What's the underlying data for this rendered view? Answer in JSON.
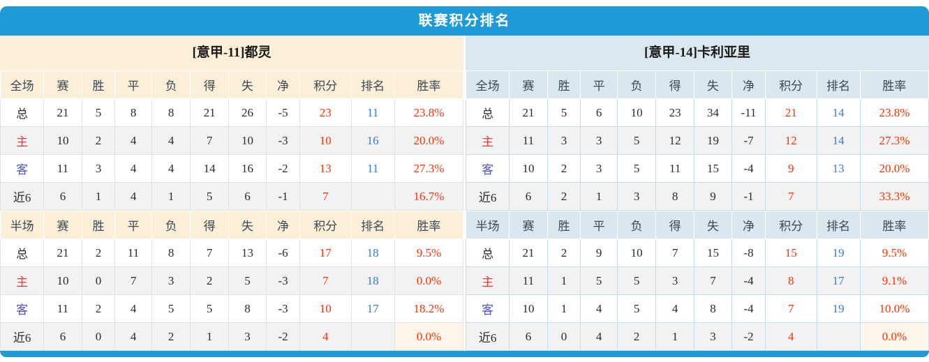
{
  "title": "联赛积分排名",
  "colors": {
    "accent_blue": "#1E9AD7",
    "home_panel_header": "#FBF0D7",
    "away_panel_header": "#DCE8EF",
    "alt_row_gray": "#F2F2F2",
    "value_red": "#FF3000",
    "rank_blue": "#3A7BD5",
    "home_label_red": "#E23B3B",
    "away_label_blue": "#4E4ED6",
    "highlight_cell_cream": "#FDF5EA"
  },
  "stat_columns": [
    "赛",
    "胜",
    "平",
    "负",
    "得",
    "失",
    "净",
    "积分",
    "排名",
    "胜率"
  ],
  "panels": [
    {
      "team": "[意甲-11]都灵",
      "sections": [
        {
          "scope": "全场",
          "rows": [
            {
              "label": "总",
              "kind": "total",
              "values": [
                "21",
                "5",
                "8",
                "8",
                "21",
                "26",
                "-5"
              ],
              "points": "23",
              "rank": "11",
              "rate": "23.8%",
              "rate_highlight": false
            },
            {
              "label": "主",
              "kind": "home",
              "values": [
                "10",
                "2",
                "4",
                "4",
                "7",
                "10",
                "-3"
              ],
              "points": "10",
              "rank": "16",
              "rate": "20.0%",
              "rate_highlight": false
            },
            {
              "label": "客",
              "kind": "away",
              "values": [
                "11",
                "3",
                "4",
                "4",
                "14",
                "16",
                "-2"
              ],
              "points": "13",
              "rank": "11",
              "rate": "27.3%",
              "rate_highlight": false
            },
            {
              "label": "近6",
              "kind": "recent",
              "values": [
                "6",
                "1",
                "4",
                "1",
                "5",
                "6",
                "-1"
              ],
              "points": "7",
              "rank": "",
              "rate": "16.7%",
              "rate_highlight": false
            }
          ]
        },
        {
          "scope": "半场",
          "rows": [
            {
              "label": "总",
              "kind": "total",
              "values": [
                "21",
                "2",
                "11",
                "8",
                "7",
                "13",
                "-6"
              ],
              "points": "17",
              "rank": "18",
              "rate": "9.5%",
              "rate_highlight": false
            },
            {
              "label": "主",
              "kind": "home",
              "values": [
                "10",
                "0",
                "7",
                "3",
                "2",
                "5",
                "-3"
              ],
              "points": "7",
              "rank": "18",
              "rate": "0.0%",
              "rate_highlight": false
            },
            {
              "label": "客",
              "kind": "away",
              "values": [
                "11",
                "2",
                "4",
                "5",
                "5",
                "8",
                "-3"
              ],
              "points": "10",
              "rank": "17",
              "rate": "18.2%",
              "rate_highlight": false
            },
            {
              "label": "近6",
              "kind": "recent",
              "values": [
                "6",
                "0",
                "4",
                "2",
                "1",
                "3",
                "-2"
              ],
              "points": "4",
              "rank": "",
              "rate": "0.0%",
              "rate_highlight": true
            }
          ]
        }
      ]
    },
    {
      "team": "[意甲-14]卡利亚里",
      "sections": [
        {
          "scope": "全场",
          "rows": [
            {
              "label": "总",
              "kind": "total",
              "values": [
                "21",
                "5",
                "6",
                "10",
                "23",
                "34",
                "-11"
              ],
              "points": "21",
              "rank": "14",
              "rate": "23.8%",
              "rate_highlight": false
            },
            {
              "label": "主",
              "kind": "home",
              "values": [
                "11",
                "3",
                "3",
                "5",
                "12",
                "19",
                "-7"
              ],
              "points": "12",
              "rank": "14",
              "rate": "27.3%",
              "rate_highlight": false
            },
            {
              "label": "客",
              "kind": "away",
              "values": [
                "10",
                "2",
                "3",
                "5",
                "11",
                "15",
                "-4"
              ],
              "points": "9",
              "rank": "13",
              "rate": "20.0%",
              "rate_highlight": false
            },
            {
              "label": "近6",
              "kind": "recent",
              "values": [
                "6",
                "2",
                "1",
                "3",
                "8",
                "9",
                "-1"
              ],
              "points": "7",
              "rank": "",
              "rate": "33.3%",
              "rate_highlight": false
            }
          ]
        },
        {
          "scope": "半场",
          "rows": [
            {
              "label": "总",
              "kind": "total",
              "values": [
                "21",
                "2",
                "9",
                "10",
                "7",
                "15",
                "-8"
              ],
              "points": "15",
              "rank": "19",
              "rate": "9.5%",
              "rate_highlight": false
            },
            {
              "label": "主",
              "kind": "home",
              "values": [
                "11",
                "1",
                "5",
                "5",
                "3",
                "7",
                "-4"
              ],
              "points": "8",
              "rank": "17",
              "rate": "9.1%",
              "rate_highlight": false
            },
            {
              "label": "客",
              "kind": "away",
              "values": [
                "10",
                "1",
                "4",
                "5",
                "4",
                "8",
                "-4"
              ],
              "points": "7",
              "rank": "19",
              "rate": "10.0%",
              "rate_highlight": false
            },
            {
              "label": "近6",
              "kind": "recent",
              "values": [
                "6",
                "0",
                "4",
                "2",
                "1",
                "3",
                "-2"
              ],
              "points": "4",
              "rank": "",
              "rate": "0.0%",
              "rate_highlight": true
            }
          ]
        }
      ]
    }
  ]
}
